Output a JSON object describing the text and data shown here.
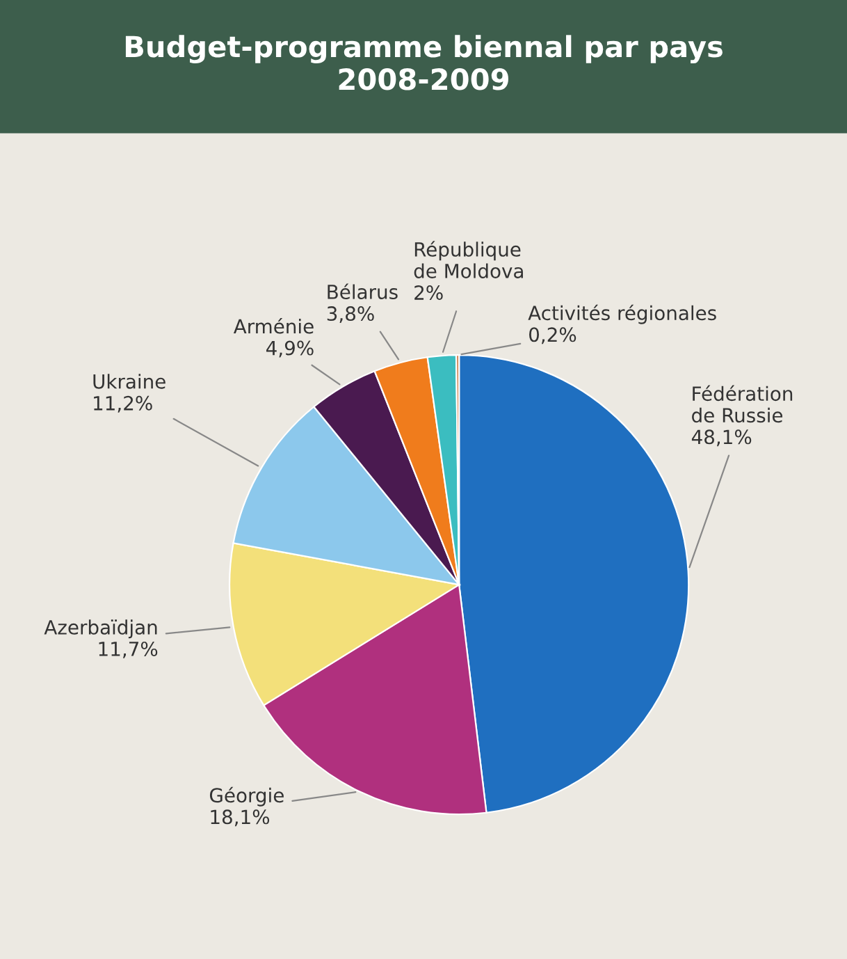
{
  "chart_data": {
    "type": "pie",
    "title": "Budget-programme biennal par pays\n2008-2009",
    "categories": [
      "Fédération\nde Russie",
      "Géorgie",
      "Azerbaïdjan",
      "Ukraine",
      "Arménie",
      "Bélarus",
      "République\nde Moldova",
      "Activités régionales"
    ],
    "values": [
      48.1,
      18.1,
      11.7,
      11.2,
      4.9,
      3.8,
      2,
      0.2
    ],
    "colors": [
      "#1f6fc0",
      "#b0307e",
      "#f3e07a",
      "#8cc8ec",
      "#4a1a50",
      "#f07c1c",
      "#3bbdc0",
      "#d08050"
    ],
    "value_labels": [
      "48,1%",
      "18,1%",
      "11,7%",
      "11,2%",
      "4,9%",
      "3,8%",
      "2%",
      "0,2%"
    ],
    "legend": false
  }
}
